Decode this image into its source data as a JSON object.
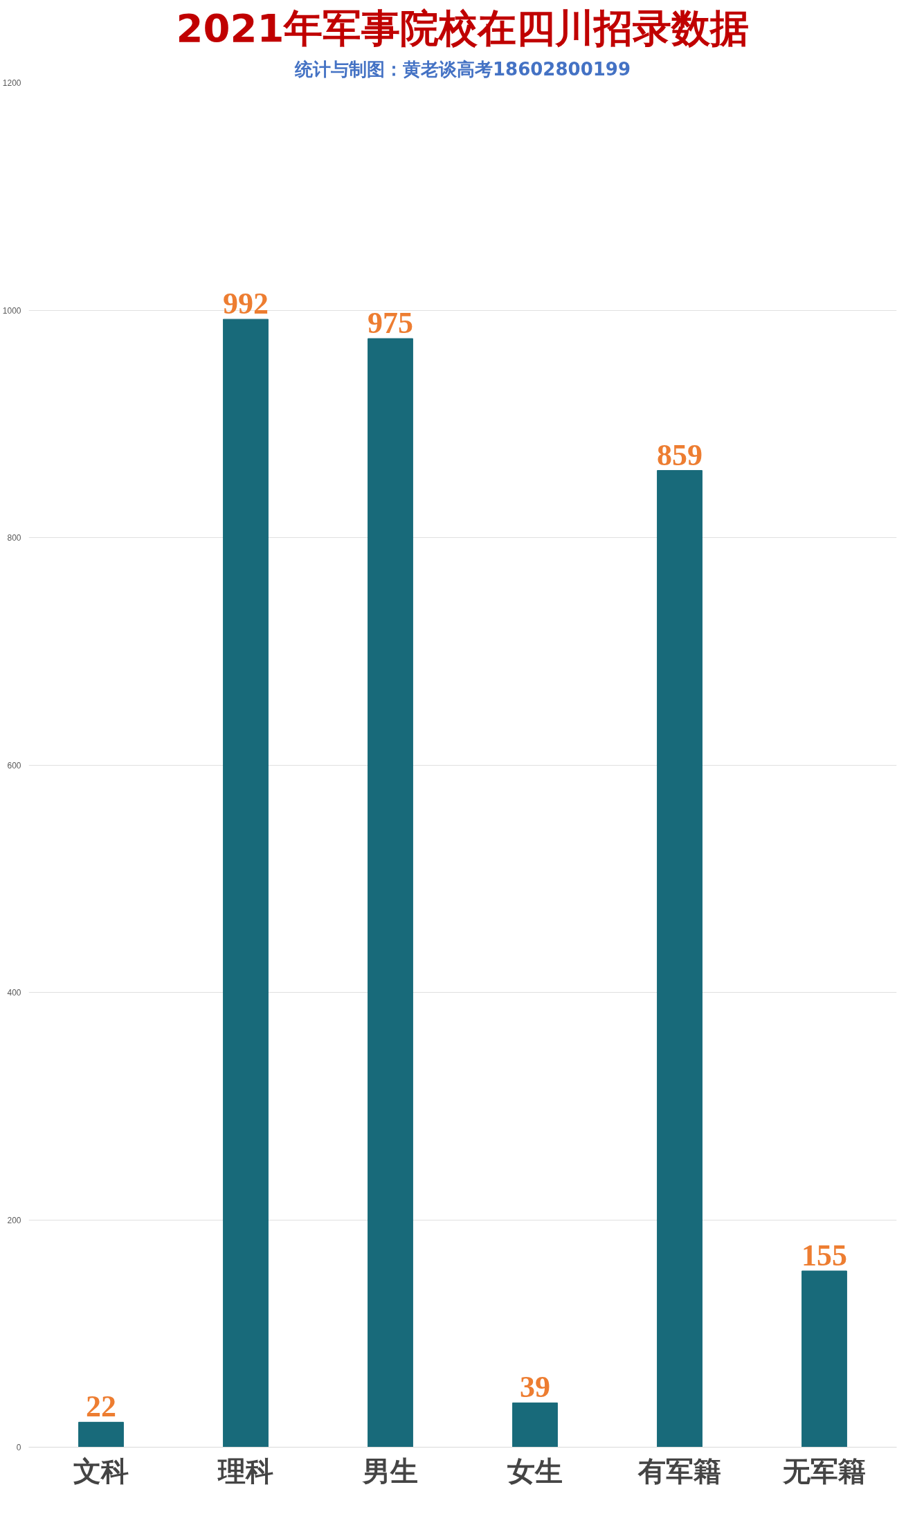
{
  "chart_data": {
    "type": "bar",
    "title": "2021年军事院校在四川招录数据",
    "subtitle": "统计与制图：黄老谈高考18602800199",
    "categories": [
      "文科",
      "理科",
      "男生",
      "女生",
      "有军籍",
      "无军籍"
    ],
    "values": [
      22,
      992,
      975,
      39,
      859,
      155
    ],
    "color": "#186a7a",
    "ylim": [
      0,
      1200
    ],
    "yticks": [
      0,
      200,
      400,
      600,
      800,
      1000,
      1200
    ],
    "grid": true,
    "data_labels": true
  }
}
